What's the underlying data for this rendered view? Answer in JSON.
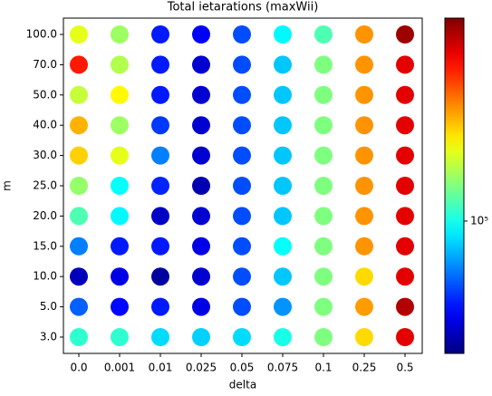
{
  "chart_data": {
    "type": "scatter",
    "title": "Total ietarations (maxWii)",
    "xlabel": "delta",
    "ylabel": "m",
    "x": [
      "0.0",
      "0.001",
      "0.01",
      "0.025",
      "0.05",
      "0.075",
      "0.1",
      "0.25",
      "0.5"
    ],
    "y": [
      "100.0",
      "70.0",
      "50.0",
      "40.0",
      "30.0",
      "25.0",
      "20.0",
      "15.0",
      "10.0",
      "5.0",
      "3.0"
    ],
    "values": [
      [
        173000,
        143000,
        52100,
        48200,
        59600,
        93600,
        116000,
        244000,
        462000
      ],
      [
        336000,
        151000,
        52100,
        43300,
        59600,
        82000,
        132000,
        244000,
        384000
      ],
      [
        159000,
        187000,
        52100,
        43300,
        59600,
        82000,
        132000,
        244000,
        384000
      ],
      [
        225000,
        143000,
        56500,
        43300,
        59600,
        82000,
        132000,
        244000,
        384000
      ],
      [
        208000,
        173000,
        68000,
        43300,
        59600,
        82000,
        132000,
        244000,
        384000
      ],
      [
        140000,
        96100,
        53500,
        40000,
        59600,
        82000,
        132000,
        244000,
        384000
      ],
      [
        116000,
        93600,
        42200,
        43300,
        59600,
        82000,
        132000,
        244000,
        384000
      ],
      [
        68000,
        52100,
        52100,
        45700,
        59600,
        96100,
        132000,
        244000,
        384000
      ],
      [
        41000,
        45700,
        37900,
        43300,
        59600,
        82000,
        132000,
        203000,
        384000
      ],
      [
        62800,
        49500,
        52100,
        45700,
        59600,
        71800,
        132000,
        238000,
        437000
      ],
      [
        107000,
        107000,
        86500,
        84200,
        86500,
        101000,
        132000,
        203000,
        384000
      ]
    ],
    "colormap": "jet",
    "zscale": "log",
    "zlim": [
      35000,
      500000
    ],
    "zticks": [
      {
        "value": 100000,
        "label": "10⁵"
      }
    ]
  }
}
